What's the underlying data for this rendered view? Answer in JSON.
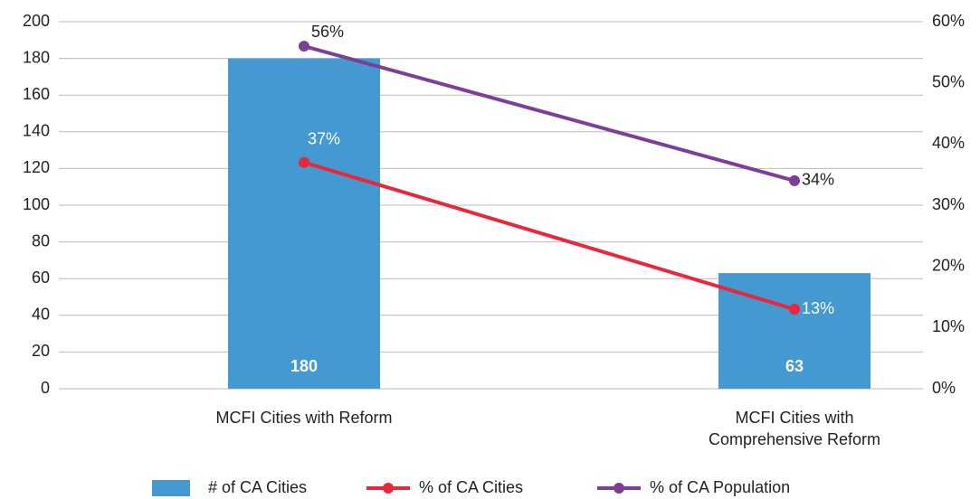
{
  "chart_data": {
    "type": "bar_line",
    "categories": [
      "MCFI Cities with Reform",
      "MCFI Cities with Comprehensive Reform"
    ],
    "series": [
      {
        "name": "# of CA Cities",
        "type": "bar",
        "color": "#4399d0",
        "values": [
          180,
          63
        ]
      },
      {
        "name": "% of CA Cities",
        "type": "line",
        "axis": "y2",
        "color": "#e8283a",
        "values": [
          37,
          13
        ],
        "value_labels": [
          "37%",
          "13%"
        ]
      },
      {
        "name": "% of CA Population",
        "type": "line",
        "axis": "y2",
        "color": "#7b3f98",
        "values": [
          56,
          34
        ],
        "value_labels": [
          "56%",
          "34%"
        ]
      }
    ],
    "ylim": [
      0,
      200
    ],
    "yticks": [
      0,
      20,
      40,
      60,
      80,
      100,
      120,
      140,
      160,
      180,
      200
    ],
    "y2lim": [
      0,
      60
    ],
    "y2ticks": [
      {
        "value": 0,
        "label": "0%"
      },
      {
        "value": 10,
        "label": "10%"
      },
      {
        "value": 20,
        "label": "20%"
      },
      {
        "value": 30,
        "label": "30%"
      },
      {
        "value": 40,
        "label": "40%"
      },
      {
        "value": 50,
        "label": "50%"
      },
      {
        "value": 60,
        "label": "60%"
      }
    ],
    "grid": true,
    "legend": "bottom"
  }
}
